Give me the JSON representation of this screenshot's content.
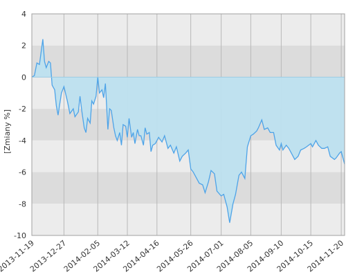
{
  "chart_data": {
    "type": "area",
    "title": "",
    "xlabel": "",
    "ylabel": "[Zmiany %]",
    "ylim": [
      -10,
      4
    ],
    "xlim": [
      "2013-11-19",
      "2014-11-24"
    ],
    "y_ticks": [
      4,
      2,
      0,
      -2,
      -4,
      -6,
      -8,
      -10
    ],
    "y_tick_labels": [
      "4",
      "2",
      "0",
      "-2",
      "-4",
      "-6",
      "-8",
      "-10"
    ],
    "x_ticks": [
      "2013-11-19",
      "2013-12-27",
      "2014-02-05",
      "2014-03-12",
      "2014-04-16",
      "2014-05-26",
      "2014-07-01",
      "2014-08-05",
      "2014-09-10",
      "2014-10-15",
      "2014-11-20"
    ],
    "grid": true,
    "band_colors": [
      "#ececec",
      "#dcdcdc"
    ],
    "fill_color": "#bde0ef",
    "line_color": "#4da3e8",
    "series": [
      {
        "x": [
          "2013-11-19",
          "2013-11-22",
          "2013-11-25",
          "2013-11-28",
          "2013-12-02",
          "2013-12-04",
          "2013-12-06",
          "2013-12-09",
          "2013-12-11",
          "2013-12-13",
          "2013-12-16",
          "2013-12-18",
          "2013-12-20",
          "2013-12-24",
          "2013-12-27",
          "2013-12-31",
          "2014-01-03",
          "2014-01-07",
          "2014-01-09",
          "2014-01-13",
          "2014-01-15",
          "2014-01-17",
          "2014-01-20",
          "2014-01-22",
          "2014-01-24",
          "2014-01-27",
          "2014-01-29",
          "2014-01-31",
          "2014-02-03",
          "2014-02-05",
          "2014-02-07",
          "2014-02-10",
          "2014-02-12",
          "2014-02-14",
          "2014-02-17",
          "2014-02-19",
          "2014-02-21",
          "2014-02-24",
          "2014-02-26",
          "2014-02-28",
          "2014-03-03",
          "2014-03-05",
          "2014-03-07",
          "2014-03-10",
          "2014-03-12",
          "2014-03-14",
          "2014-03-17",
          "2014-03-19",
          "2014-03-21",
          "2014-03-24",
          "2014-03-26",
          "2014-03-28",
          "2014-03-31",
          "2014-04-02",
          "2014-04-04",
          "2014-04-07",
          "2014-04-09",
          "2014-04-11",
          "2014-04-14",
          "2014-04-16",
          "2014-04-18",
          "2014-04-22",
          "2014-04-25",
          "2014-04-29",
          "2014-05-02",
          "2014-05-06",
          "2014-05-09",
          "2014-05-13",
          "2014-05-16",
          "2014-05-20",
          "2014-05-23",
          "2014-05-26",
          "2014-05-29",
          "2014-06-02",
          "2014-06-05",
          "2014-06-09",
          "2014-06-12",
          "2014-06-16",
          "2014-06-19",
          "2014-06-23",
          "2014-06-26",
          "2014-07-01",
          "2014-07-04",
          "2014-07-08",
          "2014-07-11",
          "2014-07-15",
          "2014-07-18",
          "2014-07-22",
          "2014-07-25",
          "2014-07-29",
          "2014-08-01",
          "2014-08-05",
          "2014-08-08",
          "2014-08-12",
          "2014-08-14",
          "2014-08-18",
          "2014-08-21",
          "2014-08-25",
          "2014-08-28",
          "2014-09-01",
          "2014-09-04",
          "2014-09-08",
          "2014-09-10",
          "2014-09-12",
          "2014-09-16",
          "2014-09-19",
          "2014-09-23",
          "2014-09-26",
          "2014-09-30",
          "2014-10-03",
          "2014-10-07",
          "2014-10-10",
          "2014-10-15",
          "2014-10-17",
          "2014-10-21",
          "2014-10-24",
          "2014-10-28",
          "2014-10-31",
          "2014-11-04",
          "2014-11-07",
          "2014-11-12",
          "2014-11-14",
          "2014-11-18",
          "2014-11-20",
          "2014-11-24"
        ],
        "values": [
          0,
          0.1,
          0.9,
          0.8,
          2.4,
          1.0,
          0.6,
          1.0,
          0.9,
          -0.5,
          -0.8,
          -1.8,
          -2.4,
          -1.0,
          -0.6,
          -1.5,
          -2.3,
          -2.0,
          -2.5,
          -2.2,
          -1.2,
          -2.1,
          -3.2,
          -3.5,
          -2.6,
          -2.9,
          -1.5,
          -1.7,
          -1.2,
          0,
          -1.0,
          -0.8,
          -1.3,
          -0.4,
          -3.3,
          -2.0,
          -2.1,
          -3.2,
          -3.7,
          -4.0,
          -3.5,
          -4.3,
          -3.0,
          -3.1,
          -3.8,
          -2.6,
          -3.8,
          -3.5,
          -4.2,
          -3.3,
          -3.7,
          -3.7,
          -4.3,
          -3.2,
          -3.6,
          -3.5,
          -4.7,
          -4.3,
          -4.2,
          -4.0,
          -3.8,
          -4.1,
          -3.7,
          -4.5,
          -4.3,
          -4.8,
          -4.4,
          -5.3,
          -5.0,
          -4.8,
          -4.6,
          -5.8,
          -6.0,
          -6.4,
          -6.7,
          -6.8,
          -7.3,
          -6.6,
          -5.9,
          -6.1,
          -7.2,
          -7.5,
          -7.4,
          -8.2,
          -9.2,
          -8.0,
          -7.4,
          -6.2,
          -6.0,
          -6.4,
          -4.4,
          -3.7,
          -3.6,
          -3.4,
          -3.2,
          -2.7,
          -3.3,
          -3.2,
          -3.5,
          -3.5,
          -4.3,
          -4.6,
          -4.2,
          -4.6,
          -4.3,
          -4.5,
          -4.9,
          -5.2,
          -5.0,
          -4.6,
          -4.5,
          -4.4,
          -4.2,
          -4.4,
          -4.0,
          -4.3,
          -4.5,
          -4.5,
          -4.4,
          -5.0,
          -5.2,
          -5.1,
          -4.8,
          -4.7,
          -5.5
        ]
      }
    ]
  }
}
